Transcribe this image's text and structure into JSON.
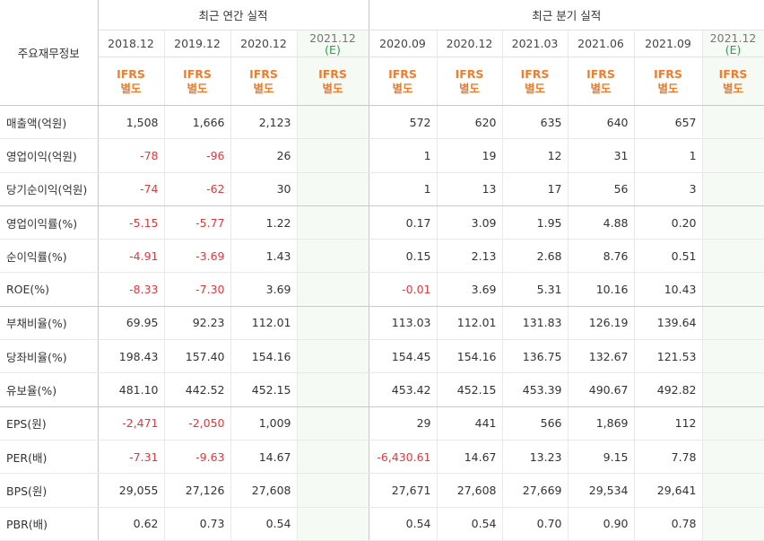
{
  "header": {
    "row_label": "주요재무정보",
    "annual_title": "최근 연간 실적",
    "quarter_title": "최근 분기 실적",
    "annual_periods": [
      {
        "date": "2018.12",
        "est": ""
      },
      {
        "date": "2019.12",
        "est": ""
      },
      {
        "date": "2020.12",
        "est": ""
      },
      {
        "date": "2021.12",
        "est": "(E)"
      }
    ],
    "quarter_periods": [
      {
        "date": "2020.09",
        "est": ""
      },
      {
        "date": "2020.12",
        "est": ""
      },
      {
        "date": "2021.03",
        "est": ""
      },
      {
        "date": "2021.06",
        "est": ""
      },
      {
        "date": "2021.09",
        "est": ""
      },
      {
        "date": "2021.12",
        "est": "(E)"
      }
    ],
    "ifrs_line1": "IFRS",
    "ifrs_line2": "별도"
  },
  "rows": [
    {
      "label": "매출액(억원)",
      "values": [
        "1,508",
        "1,666",
        "2,123",
        "",
        "572",
        "620",
        "635",
        "640",
        "657",
        ""
      ]
    },
    {
      "label": "영업이익(억원)",
      "values": [
        "-78",
        "-96",
        "26",
        "",
        "1",
        "19",
        "12",
        "31",
        "1",
        ""
      ]
    },
    {
      "label": "당기순이익(억원)",
      "values": [
        "-74",
        "-62",
        "30",
        "",
        "1",
        "13",
        "17",
        "56",
        "3",
        ""
      ]
    },
    {
      "label": "영업이익률(%)",
      "values": [
        "-5.15",
        "-5.77",
        "1.22",
        "",
        "0.17",
        "3.09",
        "1.95",
        "4.88",
        "0.20",
        ""
      ]
    },
    {
      "label": "순이익률(%)",
      "values": [
        "-4.91",
        "-3.69",
        "1.43",
        "",
        "0.15",
        "2.13",
        "2.68",
        "8.76",
        "0.51",
        ""
      ]
    },
    {
      "label": "ROE(%)",
      "values": [
        "-8.33",
        "-7.30",
        "3.69",
        "",
        "-0.01",
        "3.69",
        "5.31",
        "10.16",
        "10.43",
        ""
      ]
    },
    {
      "label": "부채비율(%)",
      "values": [
        "69.95",
        "92.23",
        "112.01",
        "",
        "113.03",
        "112.01",
        "131.83",
        "126.19",
        "139.64",
        ""
      ]
    },
    {
      "label": "당좌비율(%)",
      "values": [
        "198.43",
        "157.40",
        "154.16",
        "",
        "154.45",
        "154.16",
        "136.75",
        "132.67",
        "121.53",
        ""
      ]
    },
    {
      "label": "유보율(%)",
      "values": [
        "481.10",
        "442.52",
        "452.15",
        "",
        "453.42",
        "452.15",
        "453.39",
        "490.67",
        "492.82",
        ""
      ]
    },
    {
      "label": "EPS(원)",
      "values": [
        "-2,471",
        "-2,050",
        "1,009",
        "",
        "29",
        "441",
        "566",
        "1,869",
        "112",
        ""
      ]
    },
    {
      "label": "PER(배)",
      "values": [
        "-7.31",
        "-9.63",
        "14.67",
        "",
        "-6,430.61",
        "14.67",
        "13.23",
        "9.15",
        "7.78",
        ""
      ]
    },
    {
      "label": "BPS(원)",
      "values": [
        "29,055",
        "27,126",
        "27,608",
        "",
        "27,671",
        "27,608",
        "27,669",
        "29,534",
        "29,641",
        ""
      ]
    },
    {
      "label": "PBR(배)",
      "values": [
        "0.62",
        "0.73",
        "0.54",
        "",
        "0.54",
        "0.54",
        "0.70",
        "0.90",
        "0.78",
        ""
      ]
    }
  ],
  "colors": {
    "negative": "#e0393e",
    "ifrs": "#f07c2c",
    "estimate_bg": "#f6faf5",
    "estimate_mark": "#2e9c4e"
  }
}
